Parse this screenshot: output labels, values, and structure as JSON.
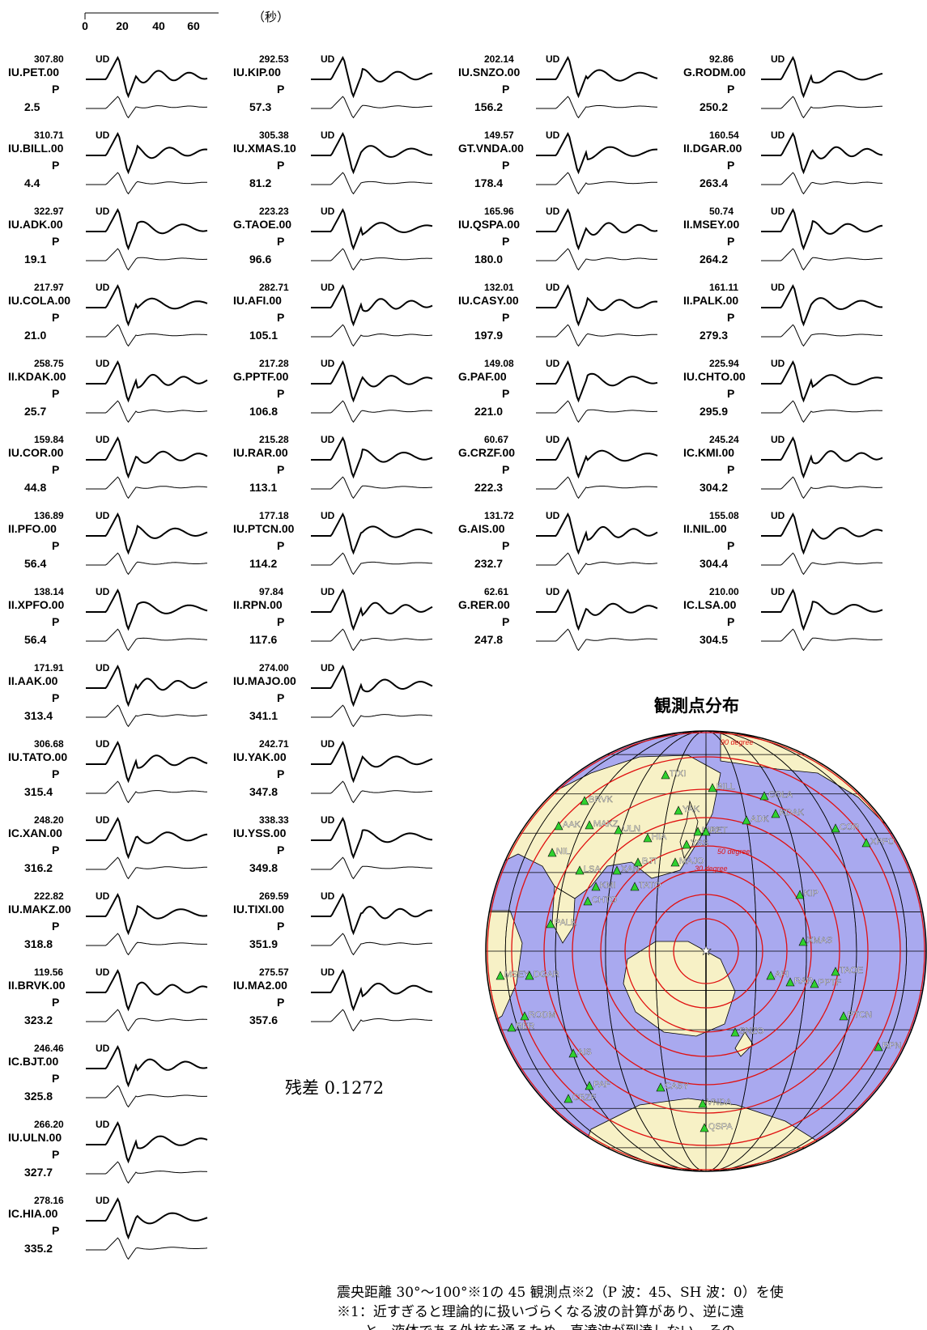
{
  "time_scale": {
    "ticks": [
      "0",
      "20",
      "40",
      "60"
    ],
    "unit_label": "（秒）"
  },
  "station_columns": [
    [
      {
        "code": "IU.PET.00",
        "amp": "307.80",
        "comp": "UD",
        "phase": "P",
        "dist": "2.5"
      },
      {
        "code": "IU.BILL.00",
        "amp": "310.71",
        "comp": "UD",
        "phase": "P",
        "dist": "4.4"
      },
      {
        "code": "IU.ADK.00",
        "amp": "322.97",
        "comp": "UD",
        "phase": "P",
        "dist": "19.1"
      },
      {
        "code": "IU.COLA.00",
        "amp": "217.97",
        "comp": "UD",
        "phase": "P",
        "dist": "21.0"
      },
      {
        "code": "II.KDAK.00",
        "amp": "258.75",
        "comp": "UD",
        "phase": "P",
        "dist": "25.7"
      },
      {
        "code": "IU.COR.00",
        "amp": "159.84",
        "comp": "UD",
        "phase": "P",
        "dist": "44.8"
      },
      {
        "code": "II.PFO.00",
        "amp": "136.89",
        "comp": "UD",
        "phase": "P",
        "dist": "56.4"
      },
      {
        "code": "II.XPFO.00",
        "amp": "138.14",
        "comp": "UD",
        "phase": "P",
        "dist": "56.4"
      },
      {
        "code": "II.AAK.00",
        "amp": "171.91",
        "comp": "UD",
        "phase": "P",
        "dist": "313.4"
      },
      {
        "code": "IU.TATO.00",
        "amp": "306.68",
        "comp": "UD",
        "phase": "P",
        "dist": "315.4"
      },
      {
        "code": "IC.XAN.00",
        "amp": "248.20",
        "comp": "UD",
        "phase": "P",
        "dist": "316.2"
      },
      {
        "code": "IU.MAKZ.00",
        "amp": "222.82",
        "comp": "UD",
        "phase": "P",
        "dist": "318.8"
      },
      {
        "code": "II.BRVK.00",
        "amp": "119.56",
        "comp": "UD",
        "phase": "P",
        "dist": "323.2"
      },
      {
        "code": "IC.BJT.00",
        "amp": "246.46",
        "comp": "UD",
        "phase": "P",
        "dist": "325.8"
      },
      {
        "code": "IU.ULN.00",
        "amp": "266.20",
        "comp": "UD",
        "phase": "P",
        "dist": "327.7"
      },
      {
        "code": "IC.HIA.00",
        "amp": "278.16",
        "comp": "UD",
        "phase": "P",
        "dist": "335.2"
      }
    ],
    [
      {
        "code": "IU.KIP.00",
        "amp": "292.53",
        "comp": "UD",
        "phase": "P",
        "dist": "57.3"
      },
      {
        "code": "IU.XMAS.10",
        "amp": "305.38",
        "comp": "UD",
        "phase": "P",
        "dist": "81.2"
      },
      {
        "code": "G.TAOE.00",
        "amp": "223.23",
        "comp": "UD",
        "phase": "P",
        "dist": "96.6"
      },
      {
        "code": "IU.AFI.00",
        "amp": "282.71",
        "comp": "UD",
        "phase": "P",
        "dist": "105.1"
      },
      {
        "code": "G.PPTF.00",
        "amp": "217.28",
        "comp": "UD",
        "phase": "P",
        "dist": "106.8"
      },
      {
        "code": "IU.RAR.00",
        "amp": "215.28",
        "comp": "UD",
        "phase": "P",
        "dist": "113.1"
      },
      {
        "code": "IU.PTCN.00",
        "amp": "177.18",
        "comp": "UD",
        "phase": "P",
        "dist": "114.2"
      },
      {
        "code": "II.RPN.00",
        "amp": "97.84",
        "comp": "UD",
        "phase": "P",
        "dist": "117.6"
      },
      {
        "code": "IU.MAJO.00",
        "amp": "274.00",
        "comp": "UD",
        "phase": "P",
        "dist": "341.1"
      },
      {
        "code": "IU.YAK.00",
        "amp": "242.71",
        "comp": "UD",
        "phase": "P",
        "dist": "347.8"
      },
      {
        "code": "IU.YSS.00",
        "amp": "338.33",
        "comp": "UD",
        "phase": "P",
        "dist": "349.8"
      },
      {
        "code": "IU.TIXI.00",
        "amp": "269.59",
        "comp": "UD",
        "phase": "P",
        "dist": "351.9"
      },
      {
        "code": "IU.MA2.00",
        "amp": "275.57",
        "comp": "UD",
        "phase": "P",
        "dist": "357.6"
      }
    ],
    [
      {
        "code": "IU.SNZO.00",
        "amp": "202.14",
        "comp": "UD",
        "phase": "P",
        "dist": "156.2"
      },
      {
        "code": "GT.VNDA.00",
        "amp": "149.57",
        "comp": "UD",
        "phase": "P",
        "dist": "178.4"
      },
      {
        "code": "IU.QSPA.00",
        "amp": "165.96",
        "comp": "UD",
        "phase": "P",
        "dist": "180.0"
      },
      {
        "code": "IU.CASY.00",
        "amp": "132.01",
        "comp": "UD",
        "phase": "P",
        "dist": "197.9"
      },
      {
        "code": "G.PAF.00",
        "amp": "149.08",
        "comp": "UD",
        "phase": "P",
        "dist": "221.0"
      },
      {
        "code": "G.CRZF.00",
        "amp": "60.67",
        "comp": "UD",
        "phase": "P",
        "dist": "222.3"
      },
      {
        "code": "G.AIS.00",
        "amp": "131.72",
        "comp": "UD",
        "phase": "P",
        "dist": "232.7"
      },
      {
        "code": "G.RER.00",
        "amp": "62.61",
        "comp": "UD",
        "phase": "P",
        "dist": "247.8"
      }
    ],
    [
      {
        "code": "G.RODM.00",
        "amp": "92.86",
        "comp": "UD",
        "phase": "P",
        "dist": "250.2"
      },
      {
        "code": "II.DGAR.00",
        "amp": "160.54",
        "comp": "UD",
        "phase": "P",
        "dist": "263.4"
      },
      {
        "code": "II.MSEY.00",
        "amp": "50.74",
        "comp": "UD",
        "phase": "P",
        "dist": "264.2"
      },
      {
        "code": "II.PALK.00",
        "amp": "161.11",
        "comp": "UD",
        "phase": "P",
        "dist": "279.3"
      },
      {
        "code": "IU.CHTO.00",
        "amp": "225.94",
        "comp": "UD",
        "phase": "P",
        "dist": "295.9"
      },
      {
        "code": "IC.KMI.00",
        "amp": "245.24",
        "comp": "UD",
        "phase": "P",
        "dist": "304.2"
      },
      {
        "code": "II.NIL.00",
        "amp": "155.08",
        "comp": "UD",
        "phase": "P",
        "dist": "304.4"
      },
      {
        "code": "IC.LSA.00",
        "amp": "210.00",
        "comp": "UD",
        "phase": "P",
        "dist": "304.5"
      }
    ]
  ],
  "residual_label": "残差 0.1272",
  "map": {
    "title": "観測点分布",
    "ring_labels": [
      "30 degree",
      "50 degree",
      "90 degree"
    ],
    "stations": [
      "TIXI",
      "BRVK",
      "BILL",
      "COLA",
      "YAK",
      "KDAK",
      "AAK",
      "MAKZ",
      "ULN",
      "MA2",
      "PET",
      "ADK",
      "COR",
      "HIA",
      "YSS",
      "NIL",
      "BJT",
      "MAJO",
      "XPFO",
      "LSA",
      "XAN",
      "KMI",
      "TATO",
      "KIP",
      "CHTO",
      "PALK",
      "XMAS",
      "MSEY",
      "DGAR",
      "AFI",
      "TAOE",
      "RAR",
      "PPTF",
      "RODM",
      "RER",
      "PTCN",
      "SNZO",
      "RPN",
      "AIS",
      "PAF",
      "CRZF",
      "CASY",
      "VNDA",
      "QSPA"
    ],
    "colors": {
      "ocean": "#a9a9ef",
      "land": "#f7f1c6",
      "ring": "#e01010",
      "grid": "#000000",
      "station": "#2fd12f"
    }
  },
  "notes": {
    "line1": "震央距離 30°～100°※1の 45 観測点※2（P 波：45、SH 波：0）を使",
    "line2": "※1：近すぎると理論的に扱いづらくなる波の計算があり、逆に遠",
    "line3": "　　と、液体である外核を通るため、直達波が到達しない。その"
  }
}
